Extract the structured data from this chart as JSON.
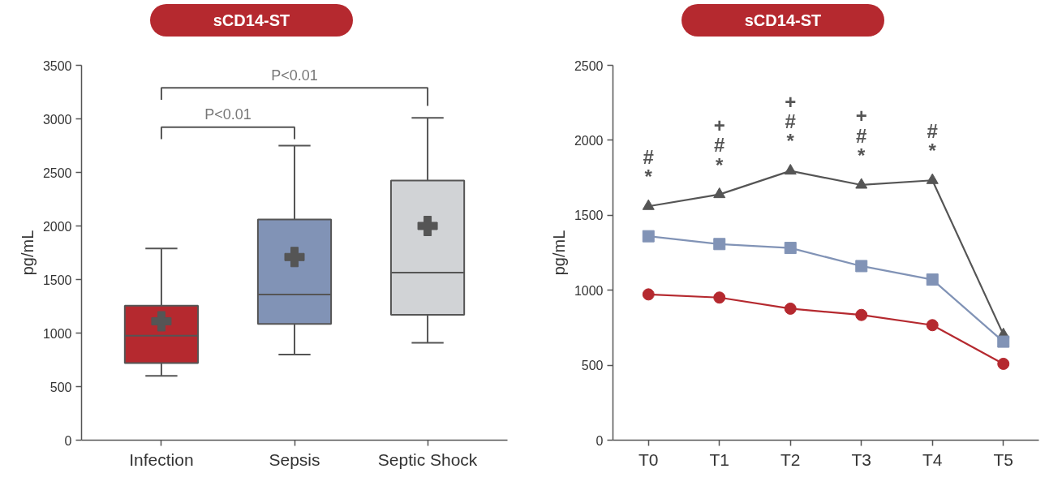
{
  "chart_data": [
    {
      "type": "box",
      "title": "sCD14-ST",
      "ylabel": "pg/mL",
      "categories": [
        "Infection",
        "Sepsis",
        "Septic Shock"
      ],
      "colors": [
        "#b5292f",
        "#8193b6",
        "#d1d3d6"
      ],
      "boxes": [
        {
          "low": 600,
          "q1": 720,
          "median": 975,
          "q3": 1255,
          "high": 1790,
          "mean": 1110
        },
        {
          "low": 800,
          "q1": 1085,
          "median": 1360,
          "q3": 2060,
          "high": 2750,
          "mean": 1710
        },
        {
          "low": 910,
          "q1": 1170,
          "median": 1565,
          "q3": 2425,
          "high": 3010,
          "mean": 2000
        }
      ],
      "ylim": [
        0,
        3500
      ],
      "yticks": [
        0,
        500,
        1000,
        1500,
        2000,
        2500,
        3000,
        3500
      ],
      "annotations": [
        "P<0.01",
        "P<0.01"
      ]
    },
    {
      "type": "line",
      "title": "sCD14-ST",
      "ylabel": "pg/mL",
      "categories": [
        "T0",
        "T1",
        "T2",
        "T3",
        "T4",
        "T5"
      ],
      "series": [
        {
          "color": "#555555",
          "marker": "triangle",
          "values": [
            1560,
            1639,
            1796,
            1702,
            1733,
            704
          ]
        },
        {
          "color": "#8193b6",
          "marker": "square",
          "values": [
            1360,
            1308,
            1282,
            1161,
            1071,
            657
          ]
        },
        {
          "color": "#b5292f",
          "marker": "circle",
          "values": [
            972,
            951,
            877,
            835,
            767,
            509
          ]
        }
      ],
      "ylim": [
        0,
        2500
      ],
      "yticks": [
        0,
        500,
        1000,
        1500,
        2000,
        2500
      ],
      "annotations": [
        "#\n*",
        "+\n#\n*",
        "+\n#\n*",
        "+\n#\n*",
        "#\n*"
      ]
    }
  ]
}
